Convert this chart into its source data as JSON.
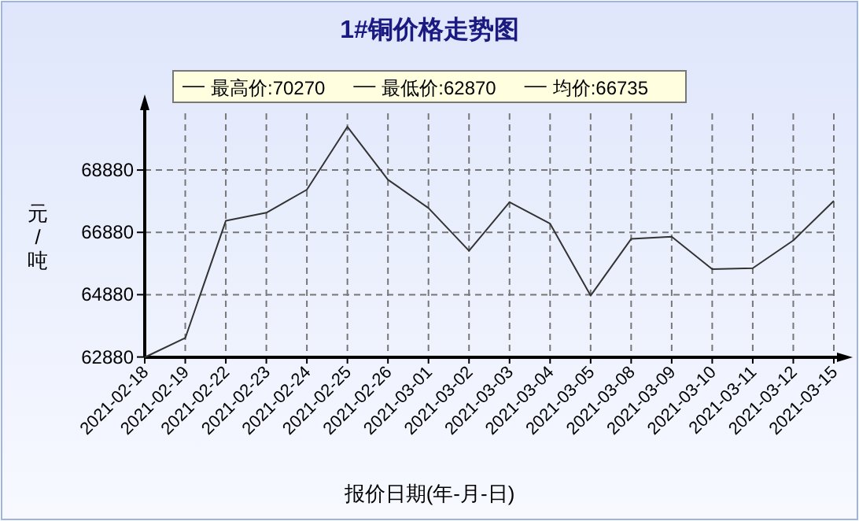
{
  "chart_data": {
    "type": "line",
    "title": "1#铜价格走势图",
    "xlabel": "报价日期(年-月-日)",
    "ylabel": "元/吨",
    "annotations": [
      "最高价:70270",
      "最低价:62870",
      "均价:66735"
    ],
    "categories": [
      "2021-02-18",
      "2021-02-19",
      "2021-02-22",
      "2021-02-23",
      "2021-02-24",
      "2021-02-25",
      "2021-02-26",
      "2021-03-01",
      "2021-03-02",
      "2021-03-03",
      "2021-03-04",
      "2021-03-05",
      "2021-03-08",
      "2021-03-09",
      "2021-03-10",
      "2021-03-11",
      "2021-03-12",
      "2021-03-15"
    ],
    "series": [
      {
        "color": "#333333",
        "values": [
          62870,
          63490,
          67250,
          67510,
          68250,
          70270,
          68570,
          67660,
          66290,
          67850,
          67160,
          64850,
          66670,
          66740,
          65700,
          65730,
          66620,
          67890
        ]
      }
    ],
    "ylim": [
      62870,
      70700
    ],
    "yticks": [
      62880,
      64880,
      66880,
      68880
    ],
    "grid": true,
    "line_style": "solid"
  }
}
